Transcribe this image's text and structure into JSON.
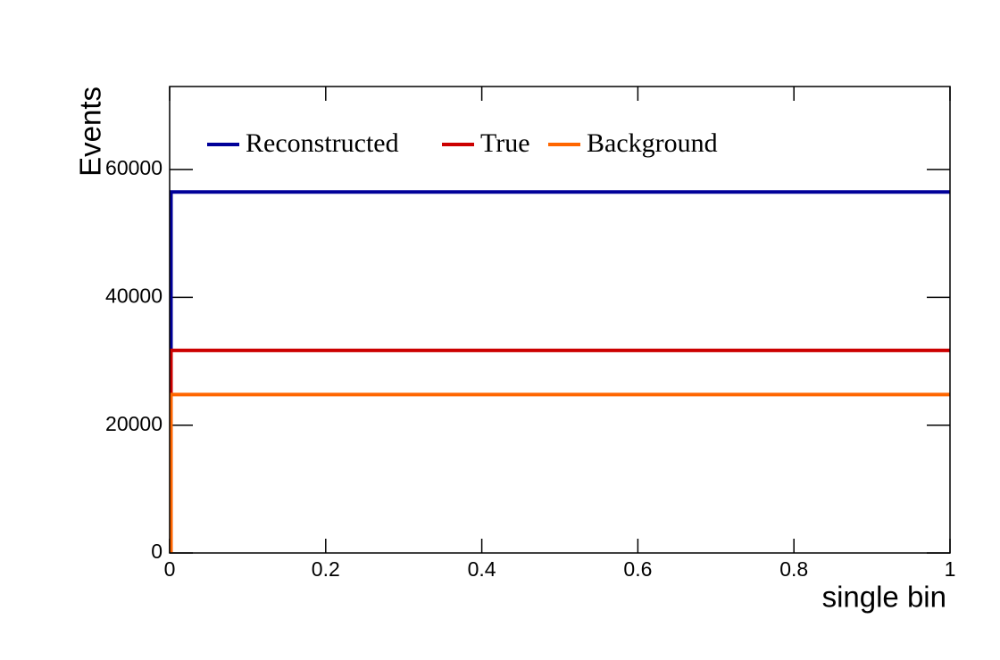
{
  "chart_data": {
    "type": "histogram",
    "xlabel": "single bin",
    "ylabel": "Events",
    "bins": [
      0,
      1
    ],
    "series": [
      {
        "name": "Reconstructed",
        "color": "#000099",
        "values": [
          56500
        ]
      },
      {
        "name": "True",
        "color": "#cc0000",
        "values": [
          31700
        ]
      },
      {
        "name": "Background",
        "color": "#ff6600",
        "values": [
          24800
        ]
      }
    ],
    "xlim": [
      0,
      1
    ],
    "xticks": [
      0,
      0.2,
      0.4,
      0.6,
      0.8,
      1
    ],
    "ylim": [
      0,
      73000
    ],
    "yticks": [
      0,
      20000,
      40000,
      60000
    ],
    "legend": "top"
  }
}
